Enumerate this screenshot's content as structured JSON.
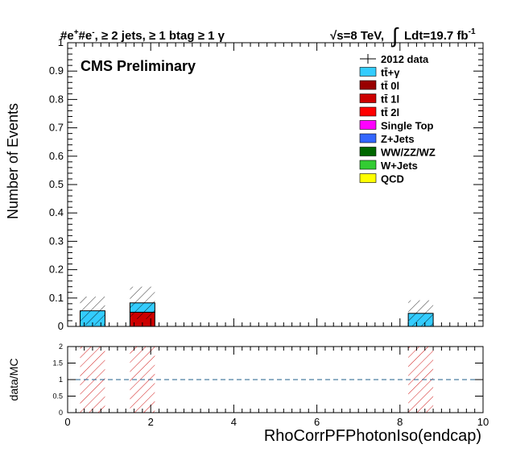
{
  "header": {
    "selection_prefix": "#e",
    "selection_plus_sup": "+",
    "selection_mid": "#e",
    "selection_minus_sup": "-",
    "selection_rest": ", ≥ 2 jets, ≥ 1 btag ≥ 1 γ",
    "energy": "√s=8 TeV,",
    "lumi_integral": "∫",
    "lumi_text": "Ldt=19.7 fb",
    "lumi_sup": "-1"
  },
  "watermark": "CMS Preliminary",
  "legend": {
    "position": "top-right",
    "entries": [
      {
        "label": "2012 data",
        "color": "#000000",
        "style": "marker"
      },
      {
        "label": "tt̄+γ",
        "color": "#33ccff",
        "style": "box"
      },
      {
        "label": "tt̄ 0l",
        "color": "#990000",
        "style": "box"
      },
      {
        "label": "tt̄ 1l",
        "color": "#cc0000",
        "style": "box"
      },
      {
        "label": "tt̄ 2l",
        "color": "#ff0000",
        "style": "box"
      },
      {
        "label": "Single Top",
        "color": "#ff00ff",
        "style": "box"
      },
      {
        "label": "Z+Jets",
        "color": "#3366ff",
        "style": "box"
      },
      {
        "label": "WW/ZZ/WZ",
        "color": "#006600",
        "style": "box"
      },
      {
        "label": "W+Jets",
        "color": "#33cc33",
        "style": "box"
      },
      {
        "label": "QCD",
        "color": "#ffff00",
        "style": "box"
      }
    ]
  },
  "chart_data": [
    {
      "type": "bar",
      "panel": "main",
      "xlim": [
        0,
        10
      ],
      "ylim": [
        0,
        1
      ],
      "ylabel": "Number of Events",
      "yticks": [
        "0",
        "0.1",
        "0.2",
        "0.3",
        "0.4",
        "0.5",
        "0.6",
        "0.7",
        "0.8",
        "0.9",
        "1"
      ],
      "bin_width": 0.6,
      "stack": [
        {
          "x": 0.6,
          "values": {
            "tt̄+γ": 0.055
          },
          "uncert_top": 0.105
        },
        {
          "x": 1.8,
          "values": {
            "tt̄ 1l": 0.05,
            "tt̄+γ": 0.033
          },
          "uncert_top": 0.14
        },
        {
          "x": 8.5,
          "values": {
            "tt̄+γ": 0.046
          },
          "uncert_top": 0.092
        }
      ]
    },
    {
      "type": "bar",
      "panel": "ratio",
      "xlim": [
        0,
        10
      ],
      "ylim": [
        0,
        2
      ],
      "ylabel": "data/MC",
      "xlabel": "RhoCorrPFPhotonIso(endcap)",
      "xticks": [
        "0",
        "2",
        "4",
        "6",
        "8",
        "10"
      ],
      "yticks": [
        "0",
        "0.5",
        "1",
        "1.5",
        "2"
      ],
      "reference_line": 1,
      "uncertainty_bands": [
        0.6,
        1.8,
        8.5
      ],
      "band_width": 0.6
    }
  ],
  "colors": {
    "uncert_main": "#000000",
    "uncert_ratio": "#cc0000",
    "reference_line": "#1f5f8b"
  }
}
